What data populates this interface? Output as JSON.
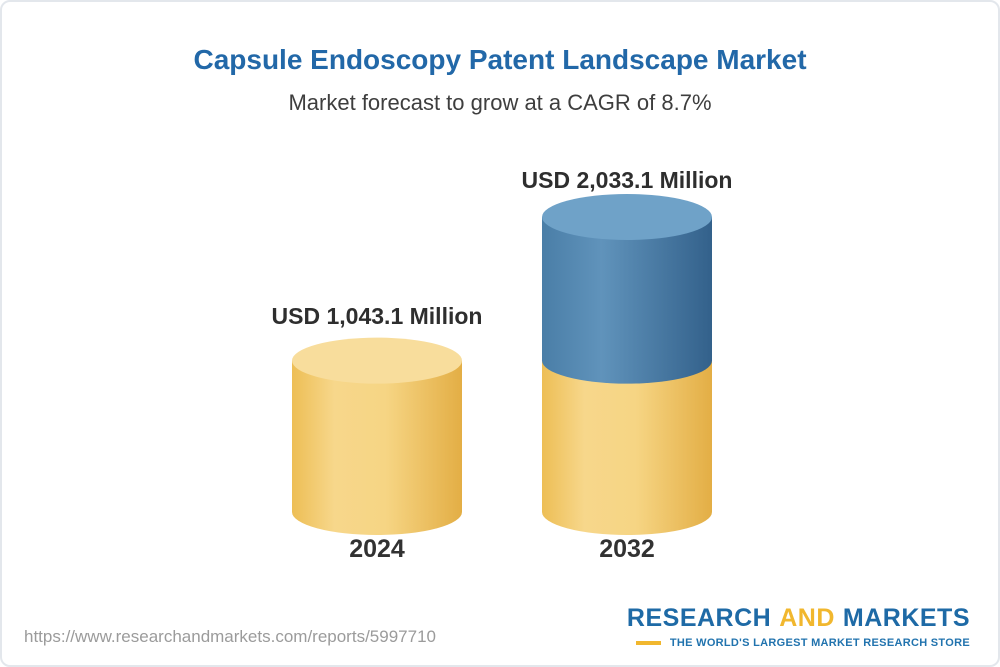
{
  "chart_data": {
    "type": "bar",
    "variant": "3d-cylinder",
    "title": "Capsule Endoscopy Patent Landscape Market",
    "subtitle": "Market forecast to grow at a CAGR of 8.7%",
    "cagr_percent": 8.7,
    "unit": "USD Million",
    "categories": [
      "2024",
      "2032"
    ],
    "values": [
      1043.1,
      2033.1
    ],
    "value_labels": [
      "USD 1,043.1 Million",
      "USD 2,033.1 Million"
    ],
    "stacked_growth": true,
    "legend": "none",
    "gridlines": false,
    "ylim": [
      0,
      2033.1
    ],
    "colors": {
      "base_fill": "#F2C965",
      "base_top": "#F8DD9C",
      "growth_fill": "#4C80AA",
      "growth_top": "#6FA2C8",
      "title_blue": "#2268A8",
      "label_dark": "#2E2E2E"
    }
  },
  "footer": {
    "url": "https://www.researchandmarkets.com/reports/5997710",
    "logo": {
      "research": "RESEARCH",
      "and": "AND",
      "markets": "MARKETS",
      "tagline": "THE WORLD'S LARGEST MARKET RESEARCH STORE",
      "brand_blue": "#1E6AA6",
      "brand_yellow": "#F1B72E"
    }
  }
}
